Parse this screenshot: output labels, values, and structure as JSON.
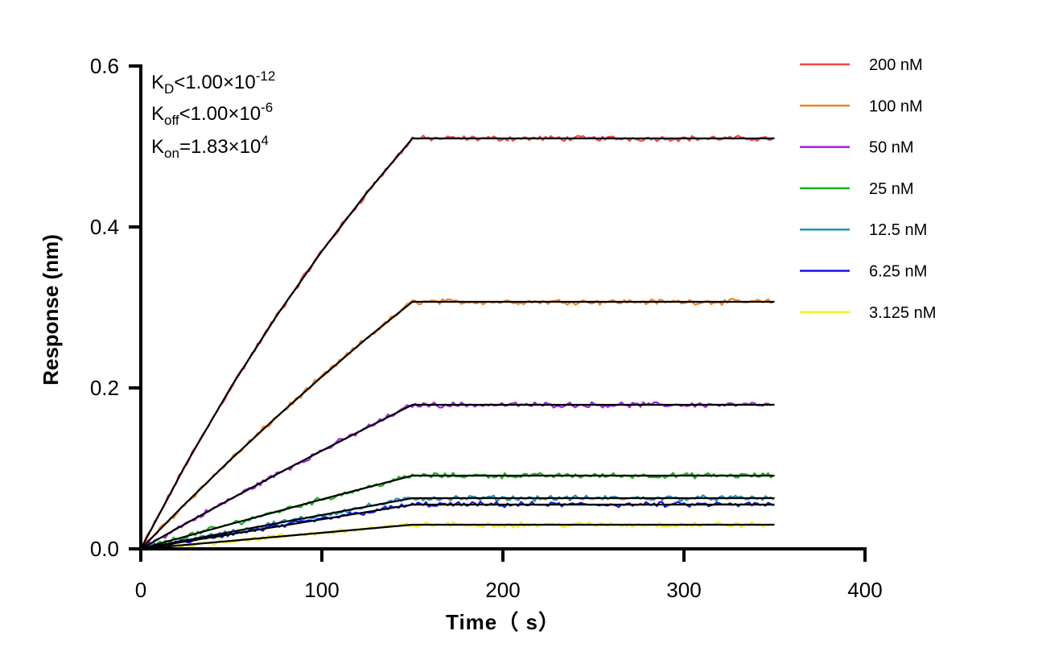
{
  "chart_data": {
    "type": "line",
    "title": "",
    "xlabel": "Time（ s）",
    "ylabel": "Response (nm)",
    "xlim": [
      0,
      400
    ],
    "ylim": [
      0,
      0.6
    ],
    "xticks": [
      "0",
      "100",
      "200",
      "300",
      "400"
    ],
    "yticks": [
      "0.0",
      "0.2",
      "0.4",
      "0.6"
    ],
    "grid": false,
    "legend_position": "right",
    "annotations": {
      "kd": {
        "sym": "K",
        "sub": "D",
        "rel": "<1.00×10",
        "exp": "-12"
      },
      "koff": {
        "sym": "K",
        "sub": "off",
        "rel": "<1.00×10",
        "exp": "-6"
      },
      "kon": {
        "sym": "K",
        "sub": "on",
        "rel": "=1.83×10",
        "exp": "4"
      }
    },
    "x": [
      0,
      25,
      50,
      75,
      100,
      125,
      150,
      200,
      250,
      300,
      350
    ],
    "fit_color": "#000000",
    "series": [
      {
        "name": "200 nM",
        "color": "#f04848",
        "values": [
          0,
          0.1055,
          0.2018,
          0.2896,
          0.37,
          0.443,
          0.51,
          0.51,
          0.51,
          0.51,
          0.51
        ]
      },
      {
        "name": "100 nM",
        "color": "#f5821f",
        "values": [
          0,
          0.0572,
          0.1118,
          0.1639,
          0.2139,
          0.262,
          0.307,
          0.307,
          0.307,
          0.307,
          0.307
        ]
      },
      {
        "name": "50 nM",
        "color": "#a020e0",
        "values": [
          0,
          0.0316,
          0.0624,
          0.0926,
          0.122,
          0.1508,
          0.179,
          0.179,
          0.179,
          0.179,
          0.179
        ]
      },
      {
        "name": "25 nM",
        "color": "#20b020",
        "values": [
          0,
          0.0156,
          0.031,
          0.0463,
          0.0615,
          0.0763,
          0.091,
          0.091,
          0.091,
          0.091,
          0.091
        ]
      },
      {
        "name": "12.5 nM",
        "color": "#2095b5",
        "values": [
          0,
          0.0106,
          0.0212,
          0.0317,
          0.0421,
          0.0526,
          0.063,
          0.063,
          0.063,
          0.063,
          0.063
        ]
      },
      {
        "name": "6.25 nM",
        "color": "#1414e6",
        "values": [
          0,
          0.0092,
          0.0184,
          0.0276,
          0.0367,
          0.0459,
          0.055,
          0.055,
          0.055,
          0.055,
          0.055
        ]
      },
      {
        "name": "3.125 nM",
        "color": "#f0f020",
        "values": [
          0,
          0.005,
          0.01,
          0.015,
          0.02,
          0.025,
          0.03,
          0.03,
          0.03,
          0.03,
          0.03
        ]
      }
    ]
  }
}
